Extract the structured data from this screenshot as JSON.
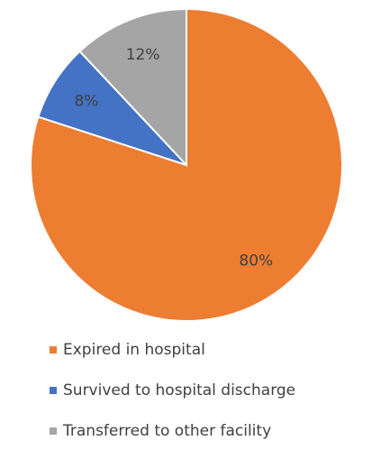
{
  "chart_data": {
    "type": "pie",
    "categories": [
      "Expired in hospital",
      "Survived to hospital discharge",
      "Transferred to other facility"
    ],
    "values": [
      80,
      8,
      12
    ],
    "value_labels": [
      "80%",
      "8%",
      "12%"
    ],
    "colors": [
      "#ED7D31",
      "#4472C4",
      "#A5A5A5"
    ],
    "legend": "bottom"
  }
}
